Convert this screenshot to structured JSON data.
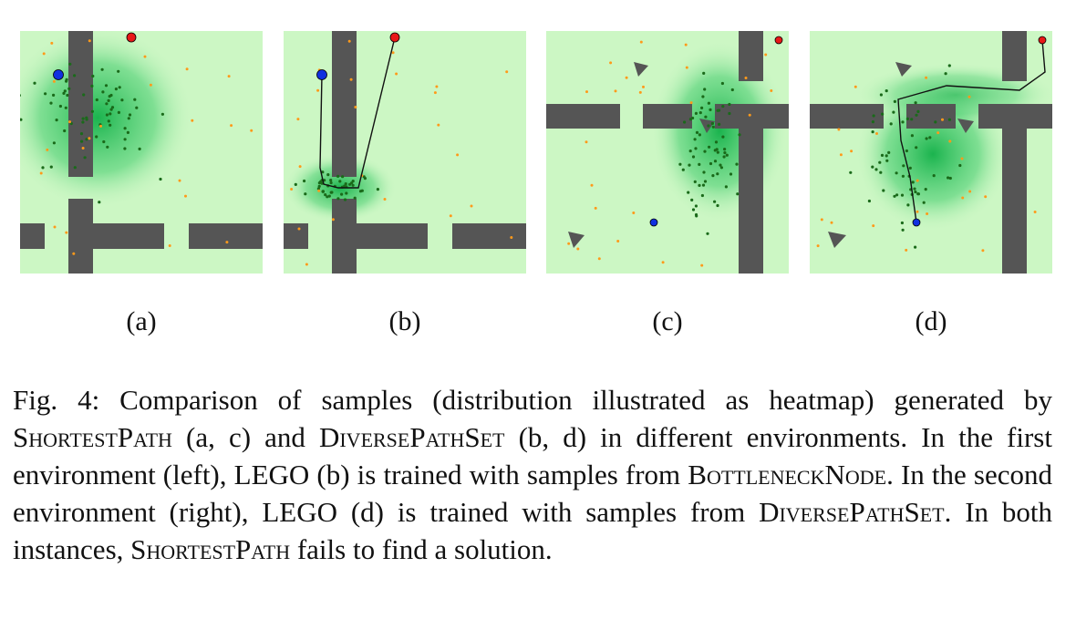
{
  "figure": {
    "panels": [
      {
        "label": "(a)",
        "environment": 1,
        "method": "ShortestPath"
      },
      {
        "label": "(b)",
        "environment": 1,
        "method": "DiversePathSet"
      },
      {
        "label": "(c)",
        "environment": 2,
        "method": "ShortestPath"
      },
      {
        "label": "(d)",
        "environment": 2,
        "method": "DiversePathSet"
      }
    ],
    "colors": {
      "background": "#ccf7c4",
      "heat": "#22c05a",
      "wall": "#555555",
      "start": "#1030e0",
      "goal": "#e81818",
      "samples": "#1a6a1a",
      "random_points": "#ff9a1a",
      "path": "#111111"
    }
  },
  "caption": {
    "prefix": "Fig. 4: Comparison of samples (distribution illustrated as heatmap) generated by ",
    "sc1": "ShortestPath",
    "t1": " (a, c) and ",
    "sc2": "DiversePathSet",
    "t2": " (b, d) in different environments. In the first environment (left), LEGO (b) is trained with samples from ",
    "sc3": "BottleneckNode",
    "t3": ". In the second environment (right), LEGO (d) is trained with samples from ",
    "sc4": "DiversePathSet",
    "t4": ". In both instances, ",
    "sc5": "ShortestPath",
    "t5": " fails to find a solution."
  }
}
